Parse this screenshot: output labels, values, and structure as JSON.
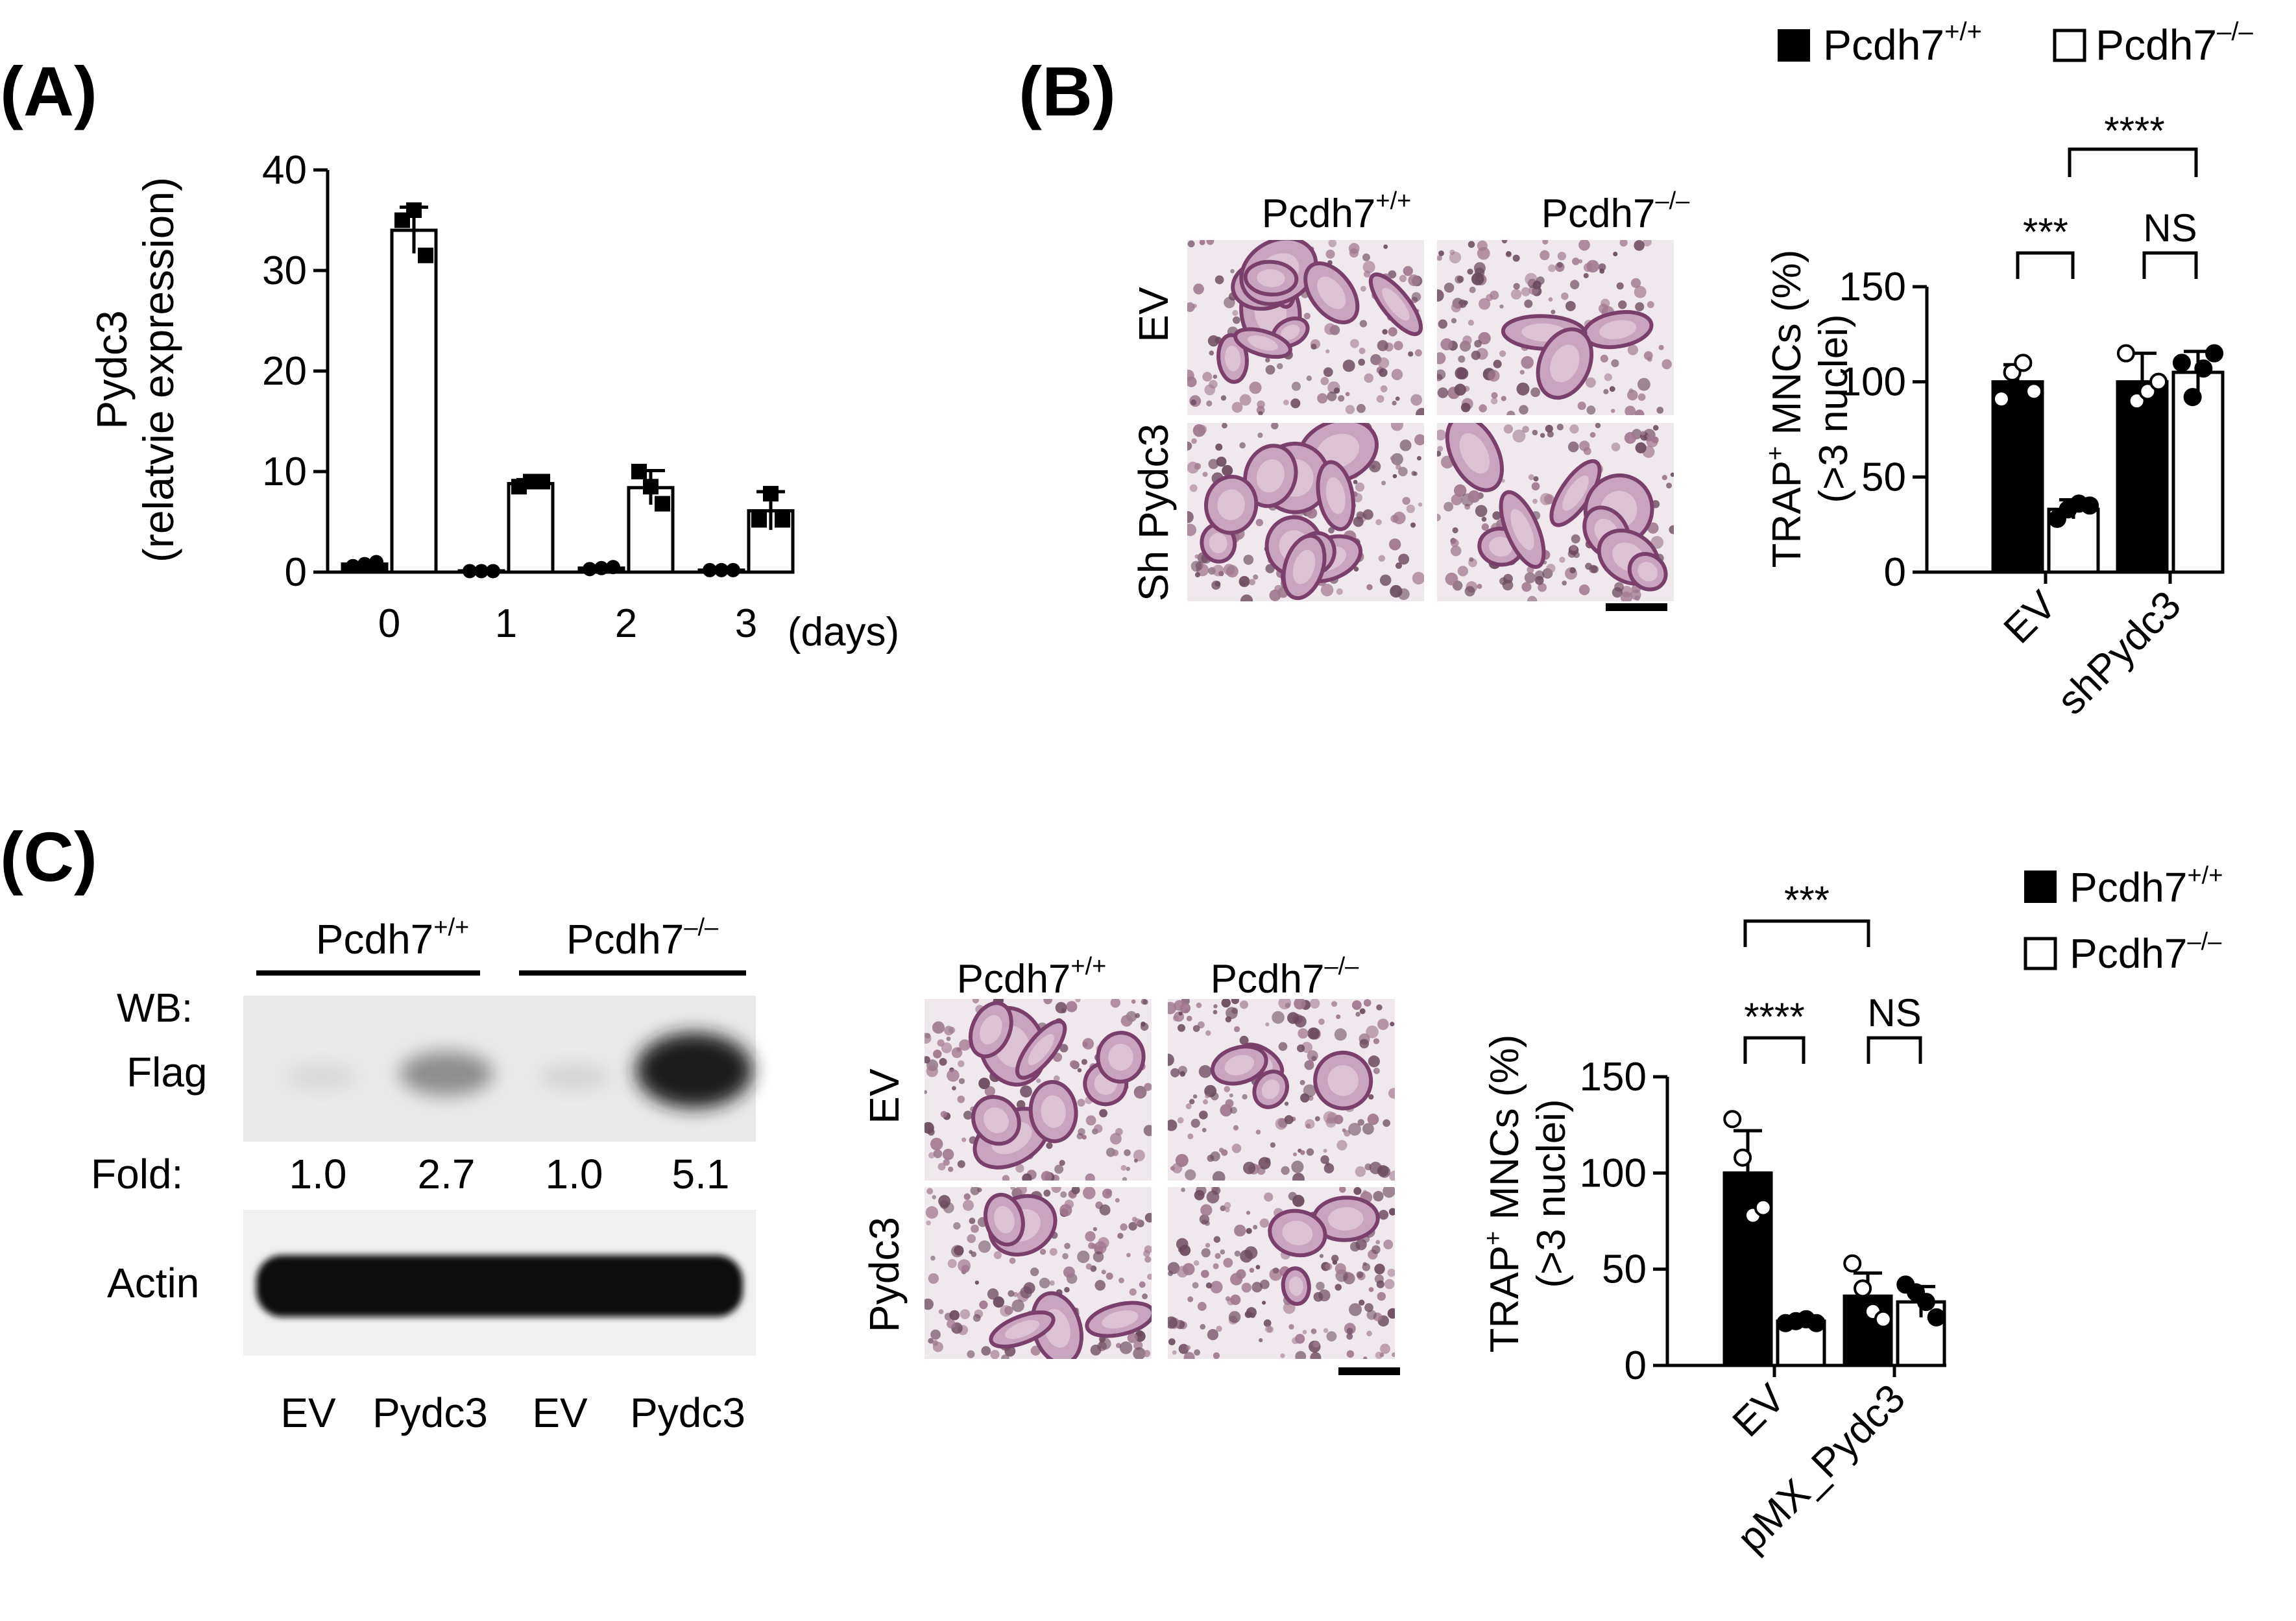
{
  "colors": {
    "wt": "#000000",
    "ko": "#ffffff"
  },
  "legend": {
    "wt_base": "Pcdh7",
    "wt_sup": "+/+",
    "ko_base": "Pcdh7",
    "ko_sup": "–/–"
  },
  "panels": {
    "A": {
      "label": "(A)"
    },
    "B": {
      "label": "(B)",
      "col_wt_base": "Pcdh7",
      "col_wt_sup": "+/+",
      "col_ko_base": "Pcdh7",
      "col_ko_sup": "–/–",
      "row1": "EV",
      "row2": "Sh Pydc3",
      "sig_top": "****",
      "sig_ev": "***",
      "sig_sh": "NS"
    },
    "C": {
      "label": "(C)",
      "wb_header_wt_base": "Pcdh7",
      "wb_header_wt_sup": "+/+",
      "wb_header_ko_base": "Pcdh7",
      "wb_header_ko_sup": "–/–",
      "wb_label": "WB:",
      "flag_label": "Flag",
      "fold_label": "Fold:",
      "folds": [
        "1.0",
        "2.7",
        "1.0",
        "5.1"
      ],
      "actin_label": "Actin",
      "lanes": [
        "EV",
        "Pydc3",
        "EV",
        "Pydc3"
      ],
      "img_col_wt_base": "Pcdh7",
      "img_col_wt_sup": "+/+",
      "img_col_ko_base": "Pcdh7",
      "img_col_ko_sup": "–/–",
      "row1": "EV",
      "row2": "Pydc3",
      "sig_top": "***",
      "sig_ev": "****",
      "sig_px": "NS"
    }
  },
  "chart_data": [
    {
      "id": "A",
      "type": "bar",
      "ylabel_line1": "Pydc3",
      "ylabel_line2": "(relatvie expression)",
      "xunit": "(days)",
      "categories": [
        "0",
        "1",
        "2",
        "3"
      ],
      "ylim": [
        0,
        40
      ],
      "yticks": [
        0,
        10,
        20,
        30,
        40
      ],
      "series": [
        {
          "name": "Pcdh7+/+",
          "values": [
            0.8,
            0.1,
            0.4,
            0.2
          ],
          "err": [
            0.3,
            0.1,
            0.2,
            0.1
          ],
          "points": [
            [
              0.6,
              0.8,
              1.0
            ],
            [
              0.1,
              0.1,
              0.1
            ],
            [
              0.3,
              0.4,
              0.5
            ],
            [
              0.2,
              0.2,
              0.2
            ]
          ]
        },
        {
          "name": "Pcdh7-/-",
          "values": [
            34,
            8.8,
            8.4,
            6.1
          ],
          "err": [
            2.3,
            0.4,
            1.7,
            1.9
          ],
          "points": [
            [
              35,
              36,
              31.5
            ],
            [
              8.5,
              9.0,
              9.0
            ],
            [
              10,
              8.5,
              6.8
            ],
            [
              5.2,
              7.8,
              5.2
            ]
          ]
        }
      ]
    },
    {
      "id": "B",
      "type": "bar",
      "ylabel_prefix": "TRAP",
      "ylabel_sup": "+",
      "ylabel_rest": " MNCs (%)",
      "ylabel_line2": "(>3 nuclei)",
      "categories": [
        "EV",
        "shPydc3"
      ],
      "ylim": [
        0,
        150
      ],
      "yticks": [
        0,
        50,
        100,
        150
      ],
      "series": [
        {
          "name": "Pcdh7+/+",
          "values": [
            100,
            100
          ],
          "err": [
            9,
            15
          ],
          "points": [
            [
              91,
              105,
              110,
              95
            ],
            [
              115,
              90,
              95,
              100
            ]
          ]
        },
        {
          "name": "Pcdh7-/-",
          "values": [
            33,
            105
          ],
          "err": [
            5,
            11
          ],
          "points": [
            [
              28,
              33,
              36,
              35
            ],
            [
              110,
              92,
              107,
              115
            ]
          ]
        }
      ]
    },
    {
      "id": "C",
      "type": "bar",
      "ylabel_prefix": "TRAP",
      "ylabel_sup": "+",
      "ylabel_rest": " MNCs (%)",
      "ylabel_line2": "(>3 nuclei)",
      "categories": [
        "EV",
        "pMX_Pydc3"
      ],
      "ylim": [
        0,
        150
      ],
      "yticks": [
        0,
        50,
        100,
        150
      ],
      "series": [
        {
          "name": "Pcdh7+/+",
          "values": [
            100,
            36
          ],
          "err": [
            22,
            12
          ],
          "points": [
            [
              128,
              108,
              78,
              82
            ],
            [
              53,
              40,
              28,
              24
            ]
          ]
        },
        {
          "name": "Pcdh7-/-",
          "values": [
            23,
            33
          ],
          "err": [
            2,
            8
          ],
          "points": [
            [
              22,
              23,
              24,
              22
            ],
            [
              42,
              38,
              33,
              25
            ]
          ]
        }
      ]
    }
  ]
}
